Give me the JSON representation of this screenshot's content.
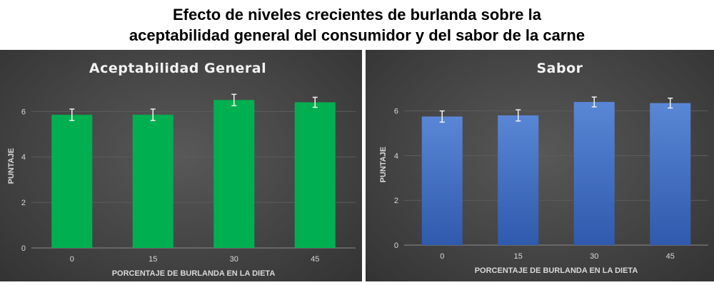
{
  "title": {
    "line1": "Efecto de niveles crecientes de burlanda sobre la",
    "line2": "aceptabilidad general del consumidor y del sabor de la carne"
  },
  "chart_data": [
    {
      "type": "bar",
      "title": "Aceptabilidad General",
      "xlabel": "PORCENTAJE DE BURLANDA EN LA DIETA",
      "ylabel": "PUNTAJE",
      "categories": [
        "0",
        "15",
        "30",
        "45"
      ],
      "values": [
        5.85,
        5.85,
        6.5,
        6.4
      ],
      "error": [
        0.25,
        0.25,
        0.25,
        0.22
      ],
      "ylim": [
        0,
        7.2
      ],
      "yticks": [
        "0",
        "2",
        "4",
        "6"
      ],
      "color": "#00b050",
      "grid": true
    },
    {
      "type": "bar",
      "title": "Sabor",
      "xlabel": "PORCENTAJE DE BURLANDA EN LA DIETA",
      "ylabel": "PUNTAJE",
      "categories": [
        "0",
        "15",
        "30",
        "45"
      ],
      "values": [
        5.75,
        5.8,
        6.4,
        6.35
      ],
      "error": [
        0.25,
        0.25,
        0.22,
        0.22
      ],
      "ylim": [
        0,
        7.2
      ],
      "yticks": [
        "0",
        "2",
        "4",
        "6"
      ],
      "color": "#4472c4",
      "grid": true
    }
  ]
}
